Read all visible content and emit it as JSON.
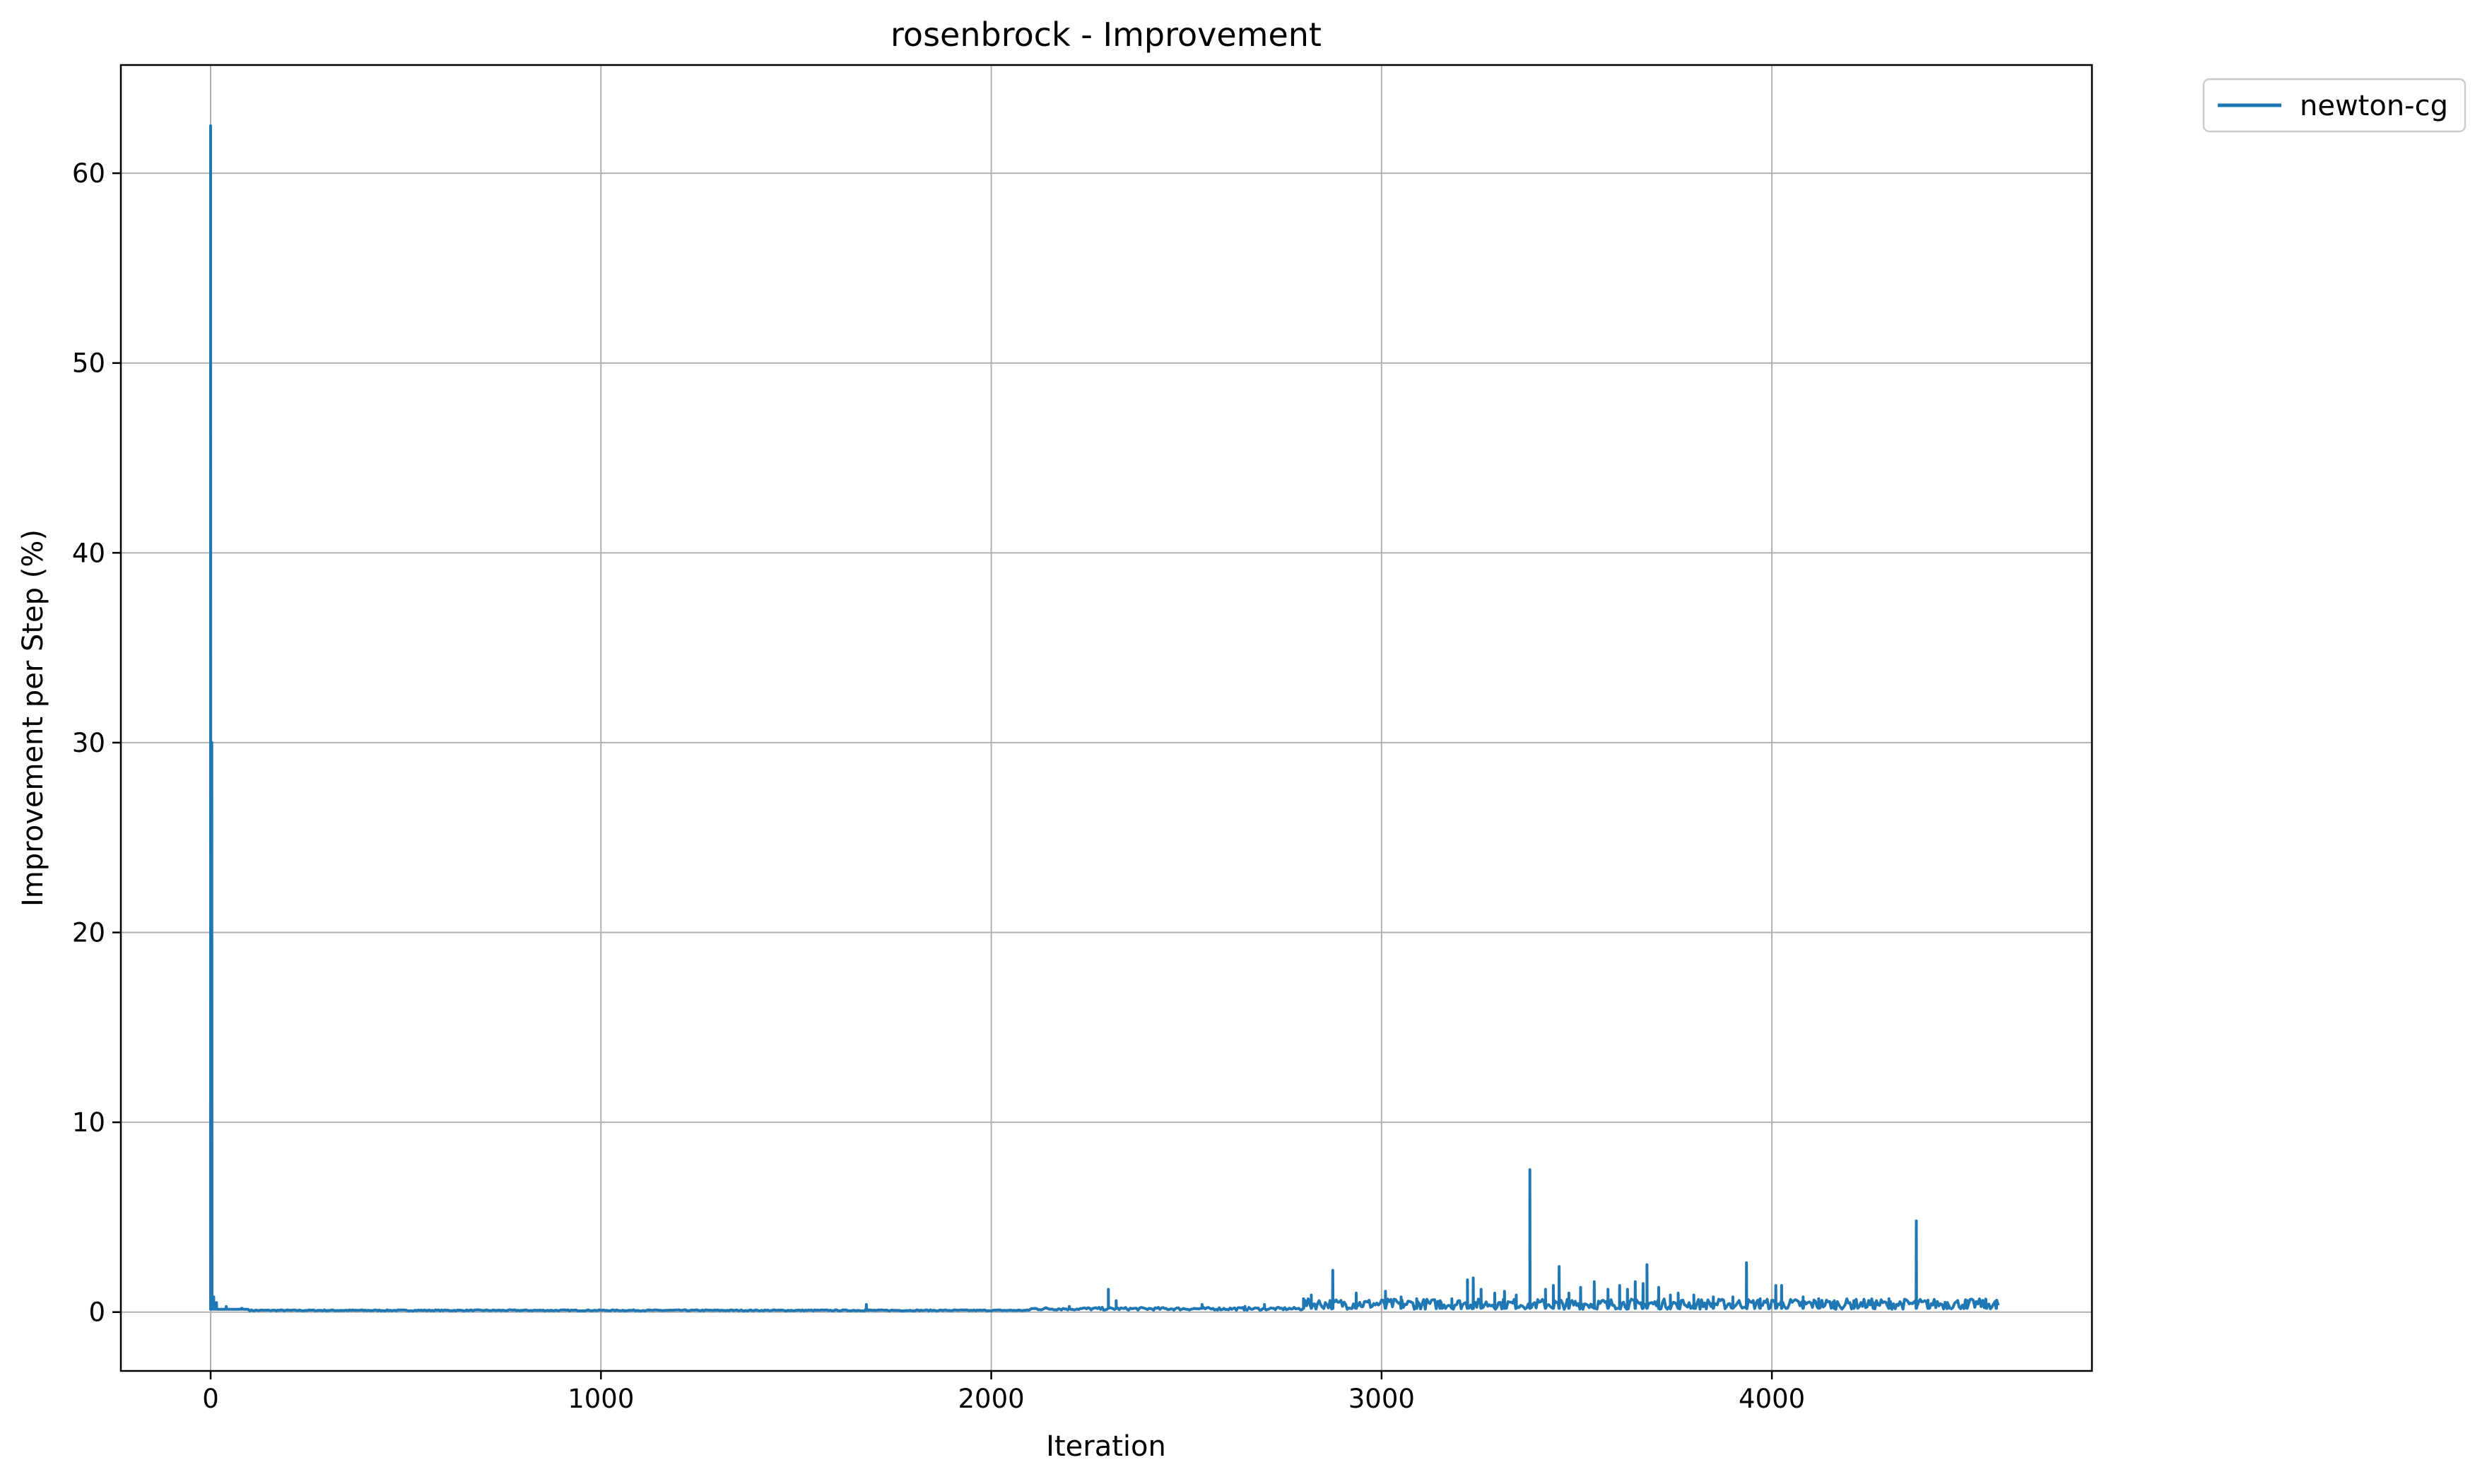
{
  "chart_data": {
    "type": "line",
    "title": "rosenbrock - Improvement",
    "xlabel": "Iteration",
    "ylabel": "Improvement per Step (%)",
    "xlim": [
      -230,
      4820
    ],
    "ylim": [
      -3.1,
      65.7
    ],
    "x_ticks": [
      0,
      1000,
      2000,
      3000,
      4000
    ],
    "y_ticks": [
      0,
      10,
      20,
      30,
      40,
      50,
      60
    ],
    "grid": true,
    "legend_position": "outside-top-right",
    "series": [
      {
        "name": "newton-cg",
        "color": "#1f77b4",
        "x_range": [
          0,
          4580
        ],
        "spikes": [
          [
            0,
            62.5
          ],
          [
            3,
            30.0
          ],
          [
            8,
            0.8
          ],
          [
            15,
            0.5
          ],
          [
            40,
            0.3
          ],
          [
            80,
            0.2
          ],
          [
            1680,
            0.4
          ],
          [
            2200,
            0.3
          ],
          [
            2300,
            1.2
          ],
          [
            2320,
            0.6
          ],
          [
            2540,
            0.4
          ],
          [
            2650,
            0.3
          ],
          [
            2700,
            0.4
          ],
          [
            2800,
            0.7
          ],
          [
            2820,
            0.9
          ],
          [
            2875,
            2.2
          ],
          [
            2935,
            1.0
          ],
          [
            3010,
            1.1
          ],
          [
            3050,
            0.8
          ],
          [
            3090,
            0.7
          ],
          [
            3150,
            0.6
          ],
          [
            3180,
            0.7
          ],
          [
            3220,
            1.7
          ],
          [
            3235,
            1.8
          ],
          [
            3255,
            1.2
          ],
          [
            3290,
            1.0
          ],
          [
            3315,
            1.1
          ],
          [
            3345,
            0.9
          ],
          [
            3380,
            7.5
          ],
          [
            3420,
            1.2
          ],
          [
            3440,
            1.4
          ],
          [
            3455,
            2.4
          ],
          [
            3480,
            1.0
          ],
          [
            3510,
            1.3
          ],
          [
            3545,
            1.6
          ],
          [
            3580,
            1.2
          ],
          [
            3610,
            1.4
          ],
          [
            3630,
            1.2
          ],
          [
            3650,
            1.6
          ],
          [
            3670,
            1.5
          ],
          [
            3680,
            2.5
          ],
          [
            3710,
            1.3
          ],
          [
            3740,
            0.9
          ],
          [
            3760,
            1.0
          ],
          [
            3800,
            0.9
          ],
          [
            3850,
            0.8
          ],
          [
            3900,
            0.8
          ],
          [
            3935,
            2.6
          ],
          [
            3970,
            0.7
          ],
          [
            4010,
            1.4
          ],
          [
            4025,
            1.4
          ],
          [
            4080,
            0.8
          ],
          [
            4120,
            0.7
          ],
          [
            4160,
            0.6
          ],
          [
            4210,
            0.6
          ],
          [
            4260,
            0.5
          ],
          [
            4300,
            0.7
          ],
          [
            4370,
            4.8
          ],
          [
            4400,
            0.5
          ],
          [
            4450,
            0.5
          ],
          [
            4500,
            0.4
          ],
          [
            4550,
            0.4
          ],
          [
            4575,
            0.3
          ]
        ]
      }
    ]
  }
}
